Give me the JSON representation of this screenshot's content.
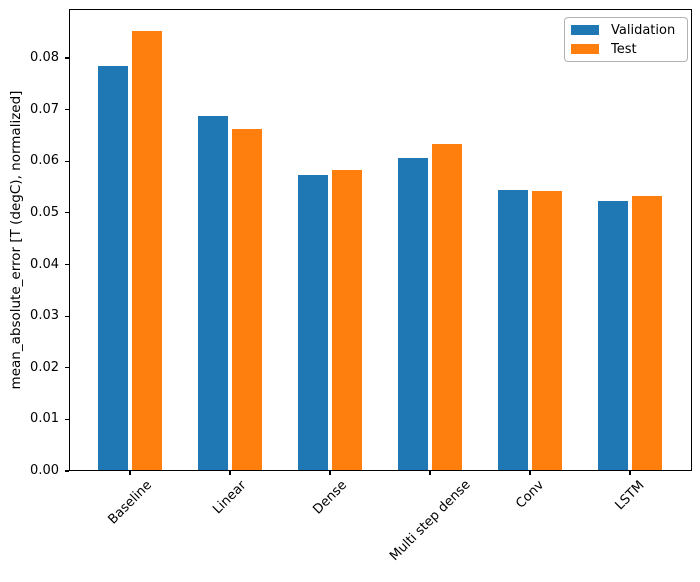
{
  "chart_data": {
    "type": "bar",
    "title": "",
    "xlabel": "",
    "ylabel": "mean_absolute_error [T (degC), normalized]",
    "categories": [
      "Baseline",
      "Linear",
      "Dense",
      "Multi step dense",
      "Conv",
      "LSTM"
    ],
    "series": [
      {
        "name": "Validation",
        "color": "#1f77b4",
        "values": [
          0.0785,
          0.0687,
          0.0573,
          0.0607,
          0.0545,
          0.0524
        ]
      },
      {
        "name": "Test",
        "color": "#ff7f0e",
        "values": [
          0.0852,
          0.0663,
          0.0584,
          0.0634,
          0.0543,
          0.0533
        ]
      }
    ],
    "ylim": [
      0,
      0.0895
    ],
    "ytick_values": [
      0.0,
      0.01,
      0.02,
      0.03,
      0.04,
      0.05,
      0.06,
      0.07,
      0.08
    ],
    "ytick_labels": [
      "0.00",
      "0.01",
      "0.02",
      "0.03",
      "0.04",
      "0.05",
      "0.06",
      "0.07",
      "0.08"
    ],
    "xtick_rotation": 45,
    "grid": false,
    "legend": {
      "position": "upper right",
      "entries": [
        "Validation",
        "Test"
      ]
    }
  }
}
